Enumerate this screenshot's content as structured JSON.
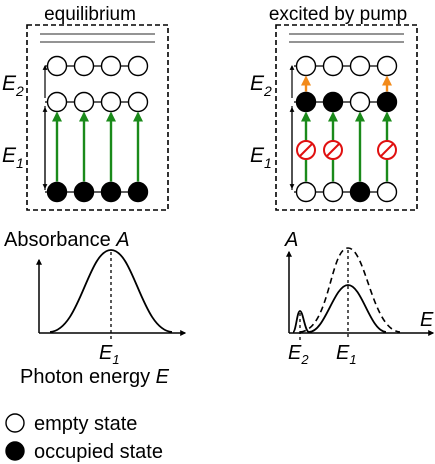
{
  "panels": {
    "left": {
      "title": "equilibrium",
      "level_labels": {
        "upper_main": "E",
        "upper_sub": "2",
        "lower_main": "E",
        "lower_sub": "1"
      },
      "levels": {
        "top": [
          "empty",
          "empty",
          "empty",
          "empty"
        ],
        "middle": [
          "empty",
          "empty",
          "empty",
          "empty"
        ],
        "bottom": [
          "occupied",
          "occupied",
          "occupied",
          "occupied"
        ]
      },
      "transitions": [
        "absorb",
        "absorb",
        "absorb",
        "absorb"
      ]
    },
    "right": {
      "title": "excited by pump",
      "level_labels": {
        "upper_main": "E",
        "upper_sub": "2",
        "lower_main": "E",
        "lower_sub": "1"
      },
      "levels": {
        "top": [
          "empty",
          "empty",
          "empty",
          "empty"
        ],
        "middle": [
          "occupied",
          "occupied",
          "empty",
          "occupied"
        ],
        "bottom": [
          "empty",
          "empty",
          "occupied",
          "empty"
        ]
      },
      "upper_transitions": [
        "absorb",
        "none",
        "none",
        "absorb"
      ],
      "transitions": [
        "blocked",
        "blocked",
        "absorb",
        "blocked"
      ]
    }
  },
  "spectra": {
    "left": {
      "ylabel_main": "Absorbance ",
      "ylabel_var": "A",
      "xlabel": "Photon energy ",
      "xlabel_var": "E",
      "peak_label_main": "E",
      "peak_label_sub": "1"
    },
    "right": {
      "ylabel_var": "A",
      "xlabel_var": "E",
      "peak1_label_main": "E",
      "peak1_label_sub": "2",
      "peak2_label_main": "E",
      "peak2_label_sub": "1"
    }
  },
  "legend": {
    "empty_label": "empty state",
    "occupied_label": "occupied state"
  },
  "colors": {
    "absorb_arrow": "#1a8a1a",
    "upper_arrow": "#f28a1a",
    "blocked": "#e01010",
    "ink": "#000000"
  }
}
